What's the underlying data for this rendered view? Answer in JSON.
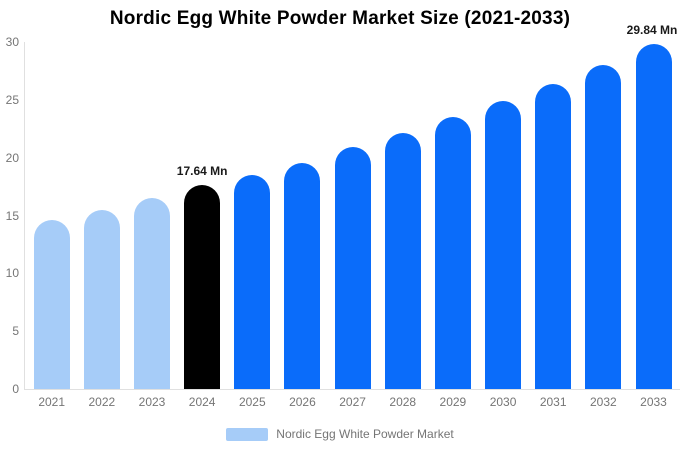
{
  "colors": {
    "historical": "#a6ccf8",
    "current": "#000000",
    "forecast": "#0a6cfa",
    "axis_line": "#e0e0e0",
    "tick_text": "#757575",
    "data_label": "#1a1a1a",
    "title": "#000000",
    "background": "#ffffff"
  },
  "legend": {
    "label": "Nordic Egg White Powder Market",
    "position": "bottom"
  },
  "chart_data": {
    "type": "bar",
    "title": "Nordic Egg White Powder Market Size (2021-2033)",
    "unit": "Mn",
    "xlabel": "",
    "ylabel": "",
    "ylim": [
      0,
      30
    ],
    "yticks": [
      0,
      5,
      10,
      15,
      20,
      25,
      30
    ],
    "grid": false,
    "legend_position": "bottom",
    "categories": [
      "2021",
      "2022",
      "2023",
      "2024",
      "2025",
      "2026",
      "2027",
      "2028",
      "2029",
      "2030",
      "2031",
      "2032",
      "2033"
    ],
    "values": [
      14.6,
      15.5,
      16.5,
      17.64,
      18.5,
      19.5,
      20.9,
      22.1,
      23.5,
      24.9,
      26.4,
      28.0,
      29.84
    ],
    "point_roles": [
      "historical",
      "historical",
      "historical",
      "current",
      "forecast",
      "forecast",
      "forecast",
      "forecast",
      "forecast",
      "forecast",
      "forecast",
      "forecast",
      "forecast"
    ],
    "data_labels": {
      "2024": "17.64 Mn",
      "2033": "29.84 Mn"
    }
  }
}
